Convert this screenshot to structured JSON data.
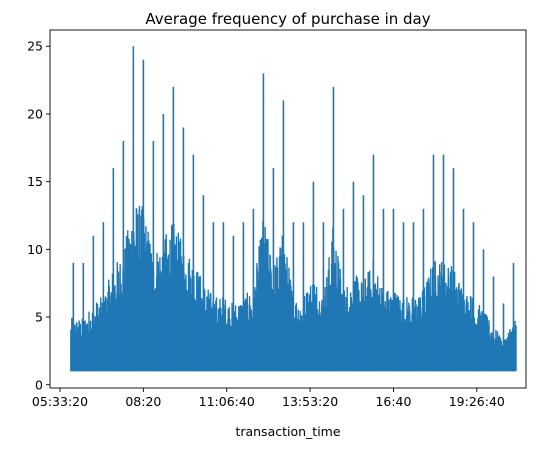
{
  "chart_data": {
    "type": "line",
    "title": "Average frequency of purchase in day",
    "xlabel": "transaction_time",
    "ylabel": "",
    "x_unit": "time of day (HH:MM:SS)",
    "xlim": [
      "05:13:20",
      "21:05:00"
    ],
    "ylim": [
      -0.24,
      26.2
    ],
    "x_ticks": [
      "05:33:20",
      "08:20",
      "11:06:40",
      "13:53:20",
      "16:40",
      "19:26:40"
    ],
    "y_ticks": [
      0,
      5,
      10,
      15,
      20,
      25
    ],
    "grid": false,
    "legend": "none",
    "series": [
      {
        "color": "#1f77b4",
        "x": [
          "06:00",
          "06:20",
          "06:40",
          "07:00",
          "07:20",
          "07:40",
          "08:00",
          "08:20",
          "08:40",
          "09:00",
          "09:20",
          "09:40",
          "10:00",
          "10:20",
          "10:40",
          "11:00",
          "11:20",
          "11:40",
          "12:00",
          "12:20",
          "12:40",
          "13:00",
          "13:20",
          "13:40",
          "14:00",
          "14:20",
          "14:40",
          "15:00",
          "15:20",
          "15:40",
          "16:00",
          "16:20",
          "16:40",
          "17:00",
          "17:20",
          "17:40",
          "18:00",
          "18:20",
          "18:40",
          "19:00",
          "19:20",
          "19:40",
          "20:00",
          "20:20",
          "20:40"
        ],
        "values": [
          9,
          9,
          11,
          12,
          16,
          18,
          25,
          24,
          18,
          20,
          22,
          19,
          17,
          14,
          12,
          12,
          11,
          12,
          13,
          23,
          16,
          21,
          12,
          12,
          15,
          12,
          22,
          13,
          15,
          14,
          17,
          13,
          13,
          12,
          12,
          13,
          17,
          17,
          16,
          13,
          12,
          10,
          8,
          6,
          9
        ]
      }
    ]
  }
}
